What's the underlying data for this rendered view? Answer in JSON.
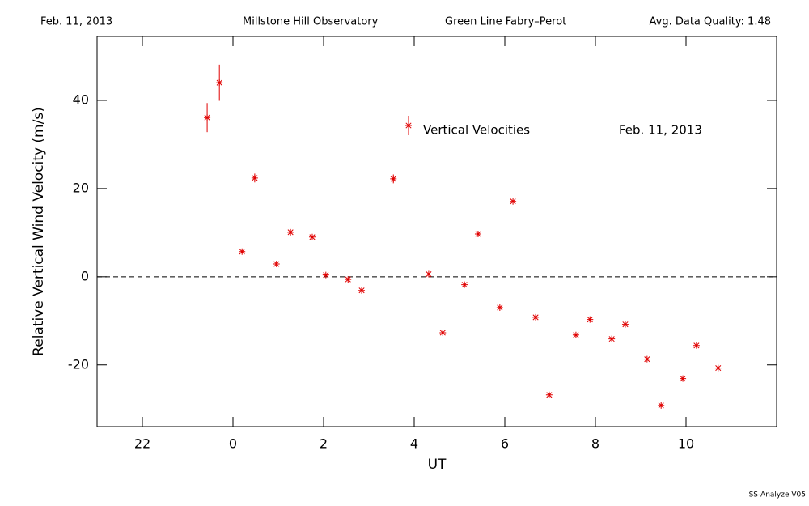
{
  "header": {
    "date": "Feb. 11, 2013",
    "site": "Millstone Hill Observatory",
    "instrument": "Green Line Fabry–Perot",
    "quality": "Avg. Data Quality: 1.48"
  },
  "chart_data": {
    "type": "scatter",
    "xlabel": "UT",
    "ylabel": "Relative Vertical Wind Velocity (m/s)",
    "xlim": [
      -3,
      12
    ],
    "ylim": [
      -34,
      54.5
    ],
    "xticks": [
      {
        "value": -2,
        "label": "22"
      },
      0,
      2,
      4,
      6,
      8,
      10
    ],
    "yticks": [
      -20,
      0,
      20,
      40
    ],
    "zero_line": true,
    "legend": "Vertical Velocities",
    "annotation": "Feb. 11, 2013",
    "series": [
      {
        "name": "Vertical Velocities",
        "color": "#e00000",
        "x": [
          -0.57,
          -0.3,
          0.2,
          0.48,
          0.96,
          1.27,
          1.75,
          2.05,
          2.54,
          2.84,
          3.54,
          4.32,
          4.63,
          5.11,
          5.41,
          5.89,
          6.18,
          6.68,
          6.98,
          7.57,
          7.88,
          8.36,
          8.66,
          9.14,
          9.45,
          9.93,
          10.23,
          10.71
        ],
        "values": [
          36.1,
          44.0,
          5.7,
          22.4,
          2.9,
          10.1,
          9.0,
          0.4,
          -0.6,
          -3.1,
          22.2,
          0.6,
          -12.7,
          -1.8,
          9.7,
          -7.0,
          17.1,
          -9.2,
          -26.8,
          -13.2,
          -9.7,
          -14.1,
          -10.8,
          -18.7,
          -29.2,
          -23.1,
          -15.6,
          -20.7
        ],
        "errors": [
          3.3,
          4.1,
          0.4,
          1.0,
          0.4,
          0.4,
          0.4,
          0.4,
          0.4,
          0.4,
          1.0,
          0.4,
          0.4,
          0.4,
          0.4,
          0.4,
          0.4,
          0.4,
          0.4,
          0.4,
          0.4,
          0.4,
          0.4,
          0.4,
          0.4,
          0.4,
          0.4,
          0.4
        ]
      }
    ]
  },
  "footer": "SS-Analyze V05"
}
